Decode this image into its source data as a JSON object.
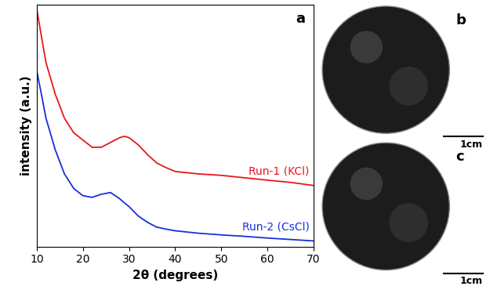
{
  "chart_data": {
    "type": "line",
    "panel_label": "a",
    "x_label": "2θ (degrees)",
    "y_label": "intensity (a.u.)",
    "x": [
      10,
      11,
      12,
      14,
      16,
      18,
      20,
      22,
      24,
      26,
      28,
      29,
      30,
      32,
      34,
      36,
      38,
      40,
      45,
      50,
      55,
      60,
      65,
      70
    ],
    "series": [
      {
        "name": "Run-1 (KCl)",
        "color": "#e8161b",
        "values": [
          98,
          87,
          76,
          63,
          53,
          47,
          44,
          41,
          41,
          43,
          45,
          45.5,
          45,
          42,
          38,
          34.5,
          32.6,
          31,
          30,
          29.4,
          28.4,
          27.4,
          26.5,
          25.2
        ]
      },
      {
        "name": "Run-2 (CsCl)",
        "color": "#1530e0",
        "values": [
          72.6,
          63,
          53,
          40,
          30,
          24,
          21,
          20.3,
          21.6,
          22.3,
          19.7,
          18,
          16.5,
          12.6,
          10,
          8,
          7.2,
          6.5,
          5.5,
          4.8,
          4.2,
          3.5,
          2.9,
          2.3
        ]
      }
    ],
    "xlim": [
      10,
      70
    ],
    "xticks": [
      10,
      20,
      30,
      40,
      50,
      60,
      70
    ],
    "ylim": [
      0,
      100
    ],
    "tick_labels": "x",
    "grid": false
  },
  "panels": [
    {
      "label": "b",
      "scale_bar": "1cm"
    },
    {
      "label": "c",
      "scale_bar": "1cm"
    }
  ]
}
